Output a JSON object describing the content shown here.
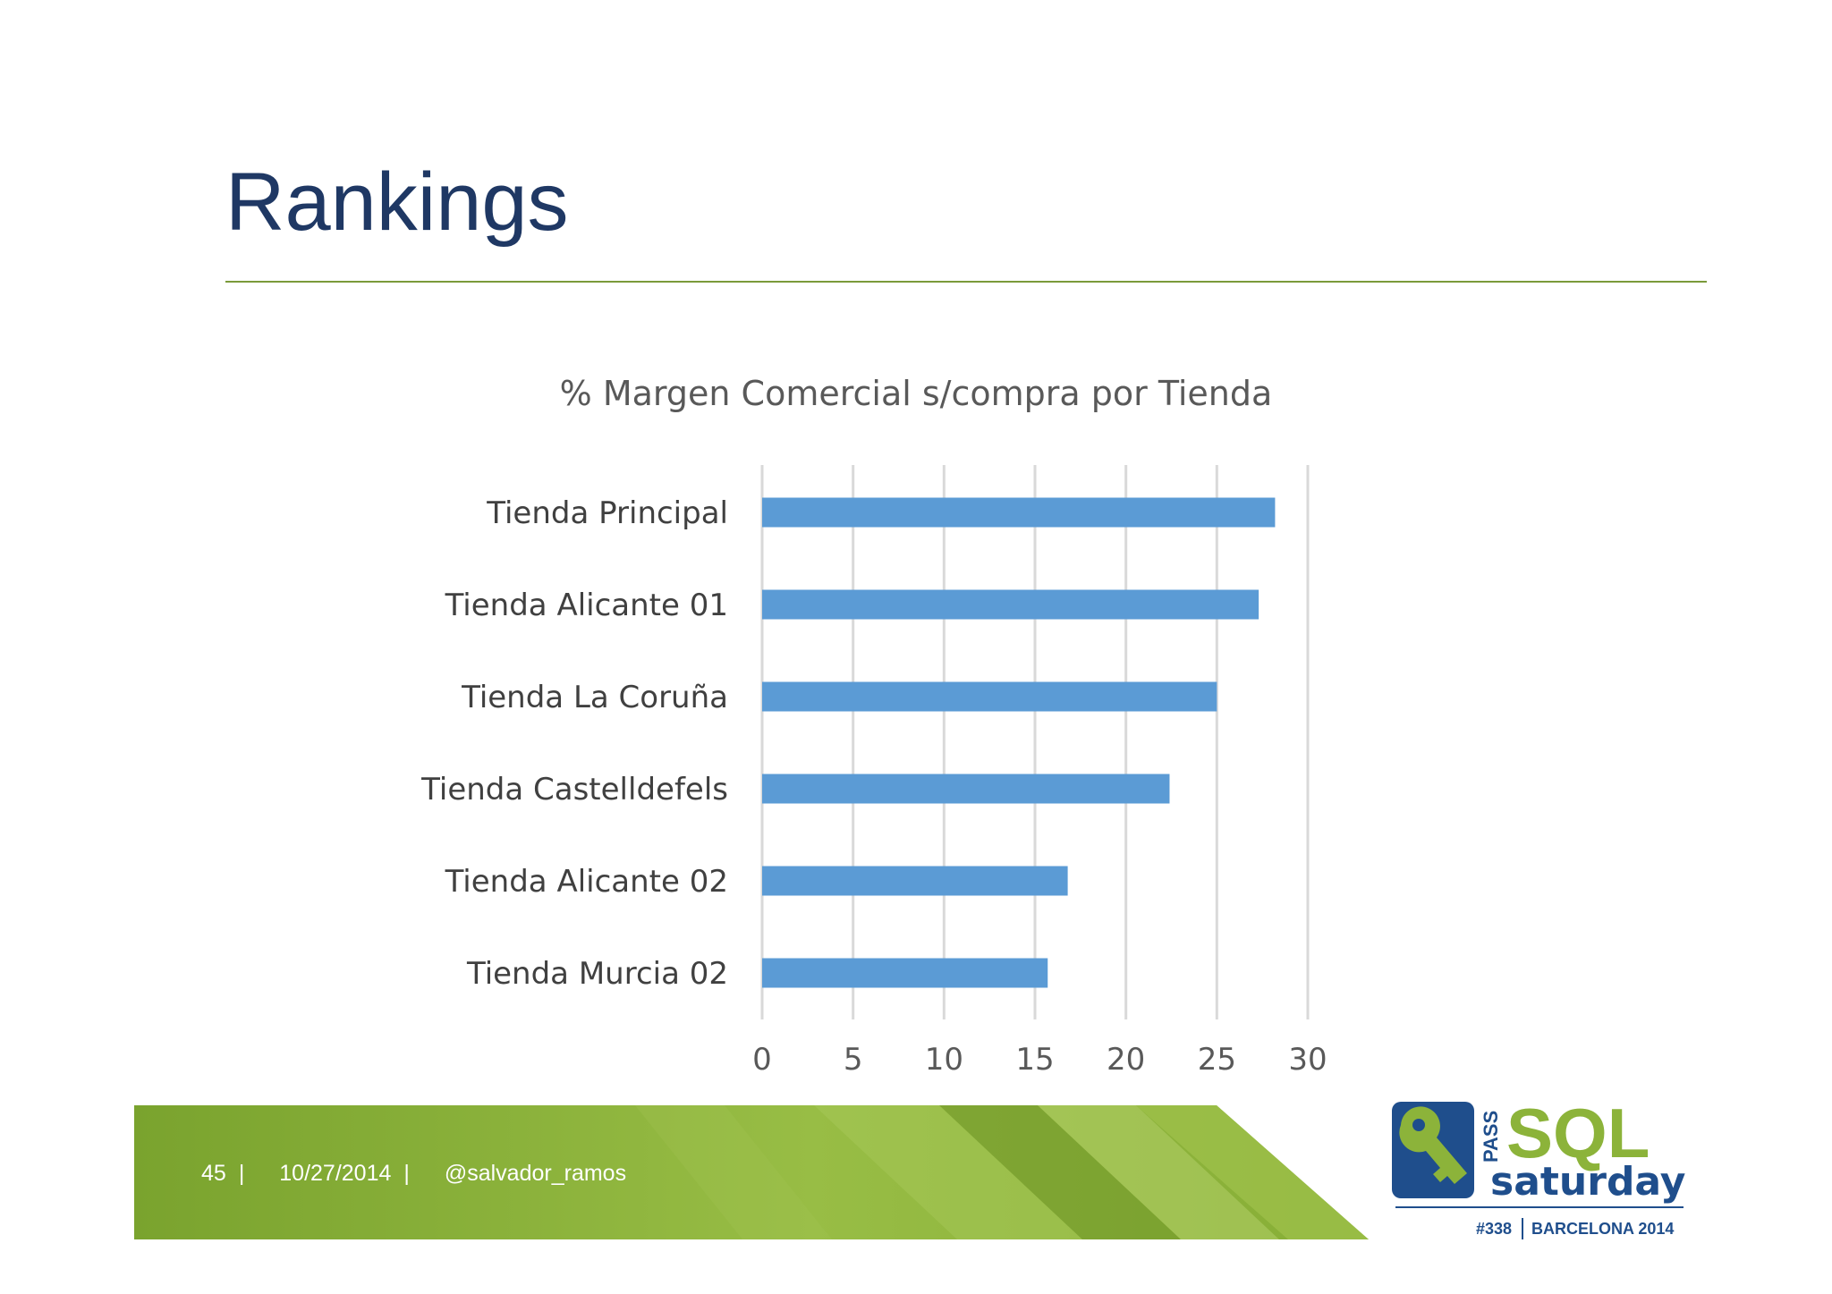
{
  "slide": {
    "title": "Rankings",
    "footer": {
      "page_number": "45",
      "separator": "|",
      "date": "10/27/2014",
      "handle": "@salvador_ramos"
    },
    "logo": {
      "brand_small": "PASS",
      "brand_main": "SQL",
      "brand_sub": "saturday",
      "event_number": "#338",
      "event_name": "BARCELONA 2014",
      "colors": {
        "blue": "#1f4e8c",
        "green": "#8cb33a"
      }
    }
  },
  "colors": {
    "bar": "#5b9bd5",
    "gridline": "#d9d9d9",
    "title_rule": "#7a9a3a",
    "footer_green": "#8cb33a"
  },
  "chart_data": {
    "type": "bar",
    "orientation": "horizontal",
    "title": "% Margen Comercial s/compra por Tienda",
    "categories": [
      "Tienda Principal",
      "Tienda Alicante 01",
      "Tienda La Coruña",
      "Tienda Castelldefels",
      "Tienda Alicante 02",
      "Tienda Murcia 02"
    ],
    "values": [
      28.2,
      27.3,
      25,
      22.4,
      16.8,
      15.7
    ],
    "xlim": [
      0,
      30
    ],
    "xticks": [
      "0",
      "5",
      "10",
      "15",
      "20",
      "25",
      "30"
    ],
    "grid": true,
    "legend": "none"
  }
}
